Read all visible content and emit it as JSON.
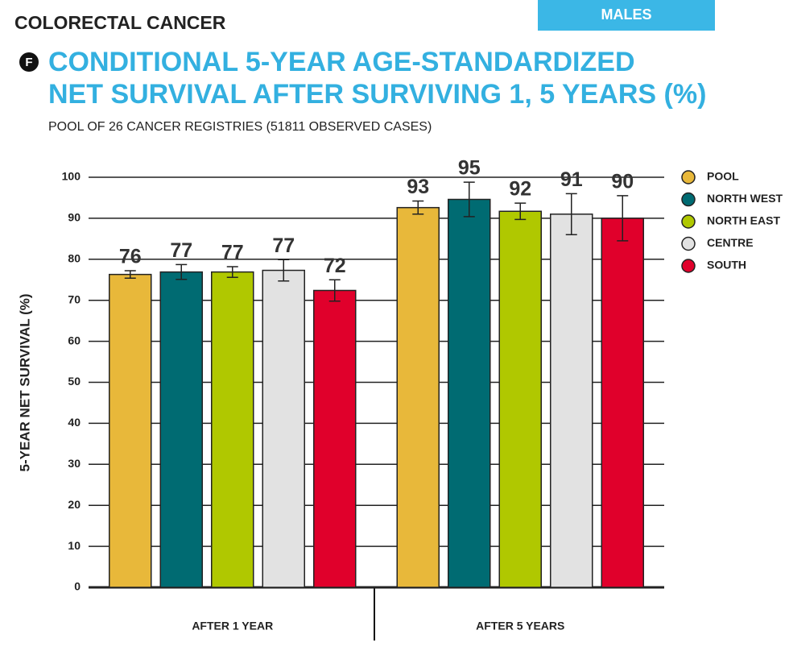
{
  "header": "COLORECTAL CANCER",
  "panel_label": "MALES",
  "panel_letter": "F",
  "chart_data": {
    "type": "bar",
    "title": [
      "CONDITIONAL 5-YEAR AGE-STANDARDIZED",
      "NET SURVIVAL AFTER SURVIVING 1, 5 YEARS (%)"
    ],
    "subtitle": "POOL OF 26 CANCER REGISTRIES (51811 OBSERVED CASES)",
    "y_label": "5-YEAR NET SURVIVAL (%)",
    "categories": [
      "AFTER 1 YEAR",
      "AFTER  5 YEARS"
    ],
    "series": [
      {
        "name": "POOL",
        "color": "#e8b83a",
        "values": [
          76.3,
          92.6
        ],
        "errors": [
          0.9,
          1.6
        ],
        "value_labels": [
          "76",
          "93"
        ]
      },
      {
        "name": "NORTH WEST",
        "color": "#006b72",
        "values": [
          76.9,
          94.6
        ],
        "errors": [
          1.8,
          4.2
        ],
        "value_labels": [
          "77",
          "95"
        ]
      },
      {
        "name": "NORTH EAST",
        "color": "#b0c800",
        "values": [
          76.9,
          91.7
        ],
        "errors": [
          1.3,
          2.0
        ],
        "value_labels": [
          "77",
          "92"
        ]
      },
      {
        "name": "CENTRE",
        "color": "#e2e2e2",
        "values": [
          77.3,
          91.0
        ],
        "errors": [
          2.6,
          5.0
        ],
        "value_labels": [
          "77",
          "91"
        ]
      },
      {
        "name": "SOUTH",
        "color": "#e0002b",
        "values": [
          72.4,
          90.0
        ],
        "errors": [
          2.6,
          5.5
        ],
        "value_labels": [
          "72",
          "90"
        ]
      }
    ],
    "ylim": [
      0,
      100
    ],
    "yticks": [
      0,
      10,
      20,
      30,
      40,
      50,
      60,
      70,
      80,
      90,
      100
    ],
    "grid": true,
    "legend": "right"
  }
}
